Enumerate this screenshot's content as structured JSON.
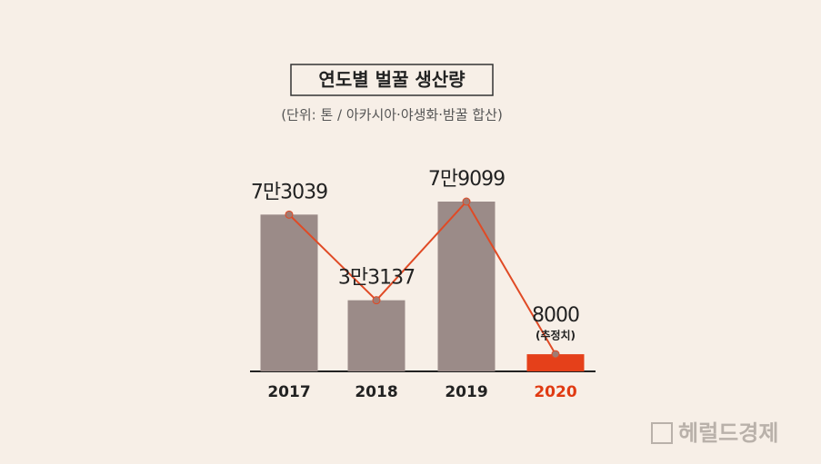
{
  "chart_data": {
    "type": "bar-line",
    "title": "연도별 벌꿀 생산량",
    "subtitle": "(단위: 톤 / 아카시아·야생화·밤꿀 합산)",
    "categories": [
      "2017",
      "2018",
      "2019",
      "2020"
    ],
    "values": [
      73039,
      33137,
      79099,
      8000
    ],
    "value_labels": [
      "7만3039",
      "3만3137",
      "7만9099",
      "8000"
    ],
    "bar_colors": [
      "#9b8b88",
      "#9b8b88",
      "#9b8b88",
      "#e5401a"
    ],
    "category_colors": [
      "#222222",
      "#222222",
      "#222222",
      "#e03a12"
    ],
    "line_color": "#e04a25",
    "annotation": "(추정치)",
    "watermark": "헤럴드경제"
  }
}
